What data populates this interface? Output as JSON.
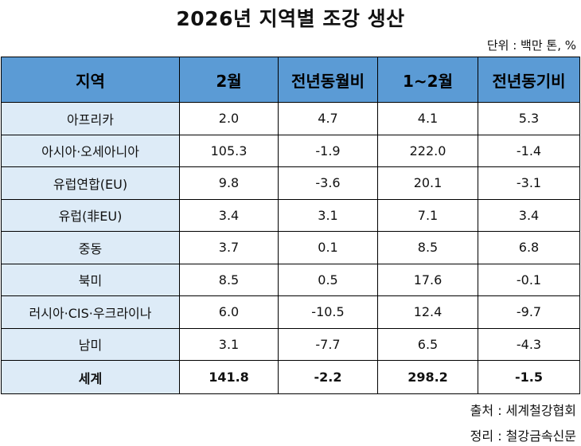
{
  "title": "2026년 지역별 조강 생산",
  "unit_note": "단위 : 백만 톤, %",
  "table": {
    "headers": [
      "지역",
      "2월",
      "전년동월비",
      "1~2월",
      "전년동기비"
    ],
    "rows": [
      [
        "아프리카",
        "2.0",
        "4.7",
        "4.1",
        "5.3"
      ],
      [
        "아시아·오세아니아",
        "105.3",
        "-1.9",
        "222.0",
        "-1.4"
      ],
      [
        "유럽연합(EU)",
        "9.8",
        "-3.6",
        "20.1",
        "-3.1"
      ],
      [
        "유럽(非EU)",
        "3.4",
        "3.1",
        "7.1",
        "3.4"
      ],
      [
        "중동",
        "3.7",
        "0.1",
        "8.5",
        "6.8"
      ],
      [
        "북미",
        "8.5",
        "0.5",
        "17.6",
        "-0.1"
      ],
      [
        "러시아·CIS·우크라이나",
        "6.0",
        "-10.5",
        "12.4",
        "-9.7"
      ],
      [
        "남미",
        "3.1",
        "-7.7",
        "6.5",
        "-4.3"
      ]
    ],
    "total": [
      "세계",
      "141.8",
      "-2.2",
      "298.2",
      "-1.5"
    ]
  },
  "source": "출처 : 세계철강협회",
  "editor": "정리 : 철강금속신문",
  "colors": {
    "header_bg": "#5b9bd5",
    "region_bg": "#ddebf7"
  }
}
